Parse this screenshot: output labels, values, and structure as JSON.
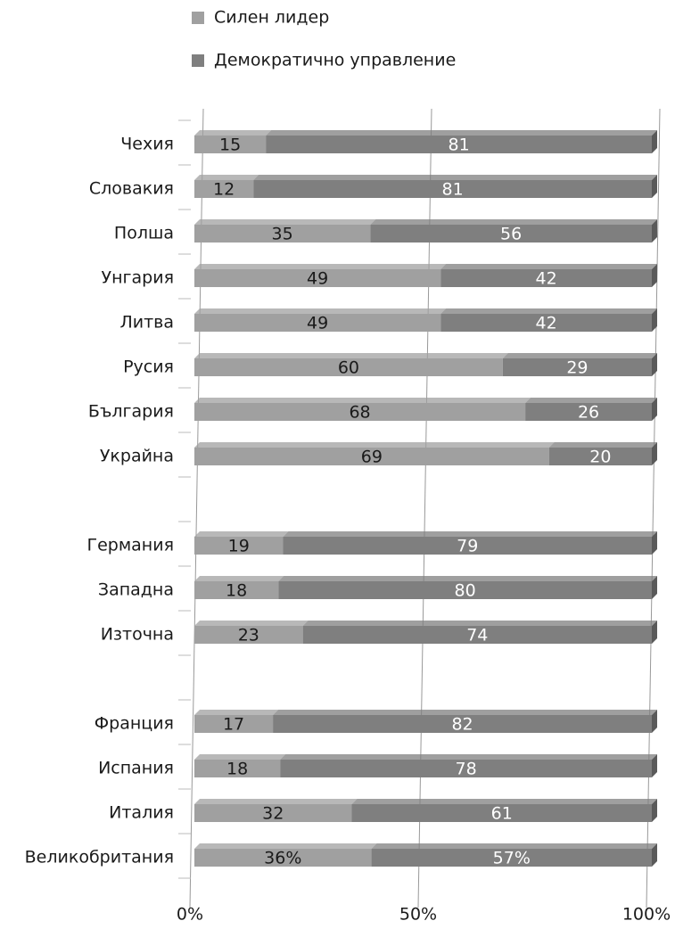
{
  "chart_data": {
    "type": "bar",
    "orientation": "horizontal",
    "stacking": "percent",
    "categories": [
      "Чехия",
      "Словакия",
      "Полша",
      "Унгария",
      "Литва",
      "Русия",
      "България",
      "Украйна",
      null,
      "Германия",
      "Западна",
      "Източна",
      null,
      "Франция",
      "Испания",
      "Италия",
      "Великобритания"
    ],
    "series": [
      {
        "name": "Силен лидер",
        "color": "#a0a0a0",
        "label_color": "#1a1a1a",
        "values": [
          15,
          12,
          35,
          49,
          49,
          60,
          68,
          69,
          null,
          19,
          18,
          23,
          null,
          17,
          18,
          32,
          36
        ],
        "value_labels": [
          "15",
          "12",
          "35",
          "49",
          "49",
          "60",
          "68",
          "69",
          null,
          "19",
          "18",
          "23",
          null,
          "17",
          "18",
          "32",
          "36%"
        ]
      },
      {
        "name": "Демократично управление",
        "color": "#7f7f7f",
        "label_color": "#ffffff",
        "values": [
          81,
          81,
          56,
          42,
          42,
          29,
          26,
          20,
          null,
          79,
          80,
          74,
          null,
          82,
          78,
          61,
          57
        ],
        "value_labels": [
          "81",
          "81",
          "56",
          "42",
          "42",
          "29",
          "26",
          "20",
          null,
          "79",
          "80",
          "74",
          null,
          "82",
          "78",
          "61",
          "57%"
        ]
      }
    ],
    "xlim": [
      0,
      100
    ],
    "xticks": [
      {
        "value": 0,
        "label": "0%"
      },
      {
        "value": 50,
        "label": "50%"
      },
      {
        "value": 100,
        "label": "100%"
      }
    ],
    "grid": true,
    "legend": "top"
  }
}
